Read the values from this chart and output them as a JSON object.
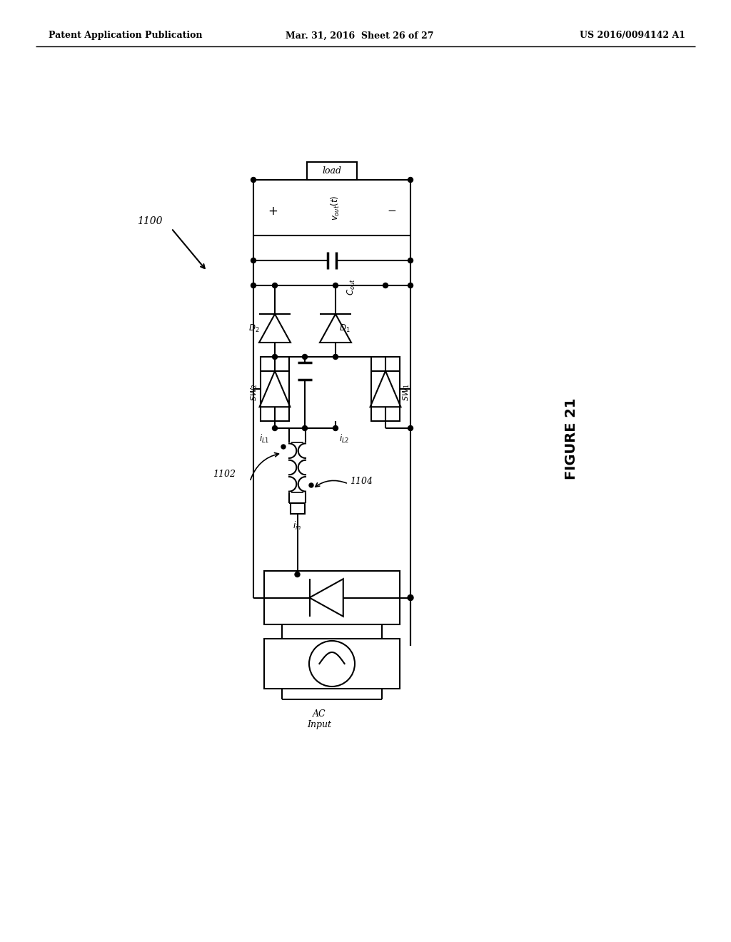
{
  "bg_color": "#ffffff",
  "line_color": "#000000",
  "header_left": "Patent Application Publication",
  "header_mid": "Mar. 31, 2016  Sheet 26 of 27",
  "header_right": "US 2016/0094142 A1",
  "figure_label": "FIGURE 21",
  "ref_1100": "1100",
  "ref_1102": "1102",
  "ref_1104": "1104"
}
